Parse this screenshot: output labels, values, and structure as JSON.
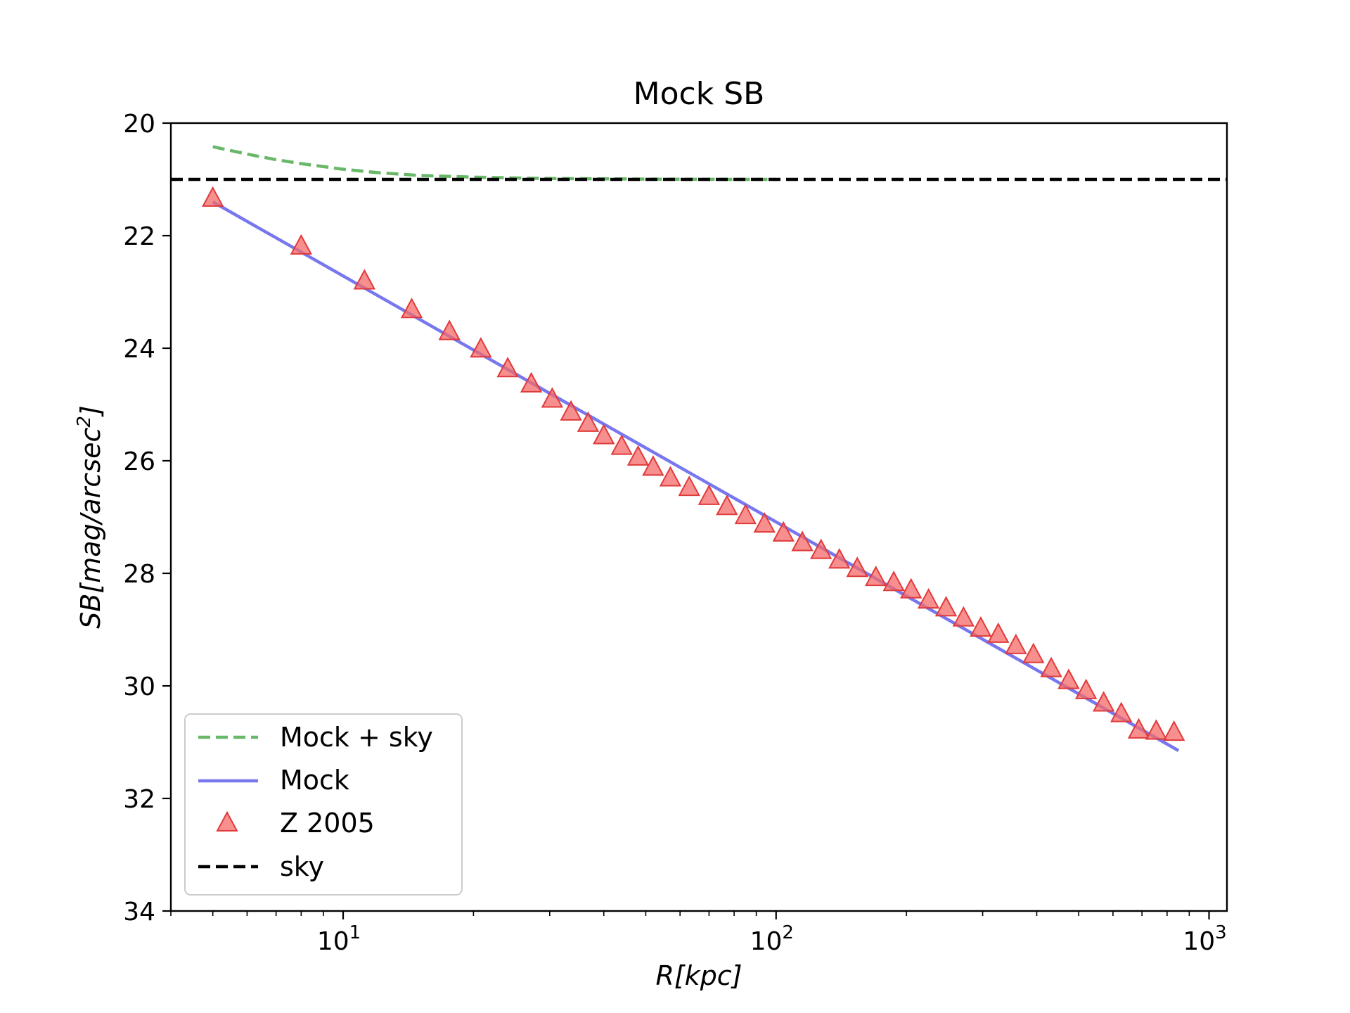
{
  "chart_data": {
    "type": "line",
    "title": "Mock SB",
    "xlabel_main": "R",
    "xlabel_unit": "[kpc]",
    "ylabel_main": "SB",
    "ylabel_unit": "[mag/arcsec",
    "ylabel_sup": "2",
    "ylabel_close": "]",
    "x_scale": "log",
    "xlim": [
      4,
      1100
    ],
    "ylim": [
      34,
      20
    ],
    "y_inverted": true,
    "yticks": [
      "20",
      "22",
      "24",
      "26",
      "28",
      "30",
      "32",
      "34"
    ],
    "xticks": [
      {
        "base": "10",
        "exp": "1",
        "value": 10
      },
      {
        "base": "10",
        "exp": "2",
        "value": 100
      },
      {
        "base": "10",
        "exp": "3",
        "value": 1000
      }
    ],
    "grid": false,
    "legend_position": "lower-left",
    "sky_level": 21.0,
    "series": [
      {
        "name": "Mock + sky",
        "style": "dashed",
        "color": "#69b869",
        "x": [
          5,
          6,
          7,
          8,
          10,
          12,
          15,
          20,
          25,
          30,
          40,
          50,
          60,
          80,
          100
        ],
        "y": [
          20.42,
          20.55,
          20.65,
          20.72,
          20.82,
          20.88,
          20.93,
          20.96,
          20.975,
          20.985,
          20.99,
          20.995,
          20.998,
          21.0,
          21.0
        ]
      },
      {
        "name": "Mock",
        "style": "solid",
        "color": "#7777ee",
        "x": [
          5,
          850
        ],
        "y": [
          21.4,
          31.15
        ]
      },
      {
        "name": "Z 2005",
        "style": "marker-triangle",
        "color": "#f46a6a",
        "x": [
          5.0,
          8.0,
          11.2,
          14.4,
          17.6,
          20.8,
          24.0,
          27.2,
          30.4,
          33.6,
          36.8,
          40.0,
          44.0,
          48.0,
          52.0,
          57.0,
          63.0,
          70.0,
          77.0,
          85.0,
          94.0,
          104.0,
          115.0,
          127.0,
          140.0,
          154.0,
          170.0,
          187.0,
          205.0,
          225.0,
          247.0,
          271.0,
          297.0,
          326.0,
          358.0,
          393.0,
          432.0,
          474.0,
          520.0,
          571.0,
          627.0,
          688.0,
          755.0,
          830.0
        ],
        "y": [
          21.35,
          22.2,
          22.82,
          23.33,
          23.72,
          24.03,
          24.38,
          24.65,
          24.92,
          25.15,
          25.35,
          25.57,
          25.76,
          25.95,
          26.13,
          26.32,
          26.49,
          26.65,
          26.83,
          26.99,
          27.14,
          27.3,
          27.47,
          27.61,
          27.78,
          27.93,
          28.09,
          28.18,
          28.31,
          28.49,
          28.63,
          28.81,
          28.99,
          29.1,
          29.3,
          29.46,
          29.71,
          29.92,
          30.1,
          30.32,
          30.51,
          30.8,
          30.82,
          30.84
        ]
      },
      {
        "name": "sky",
        "style": "dashed",
        "color": "#000000",
        "x": [
          4,
          1100
        ],
        "y": [
          21.0,
          21.0
        ]
      }
    ]
  }
}
